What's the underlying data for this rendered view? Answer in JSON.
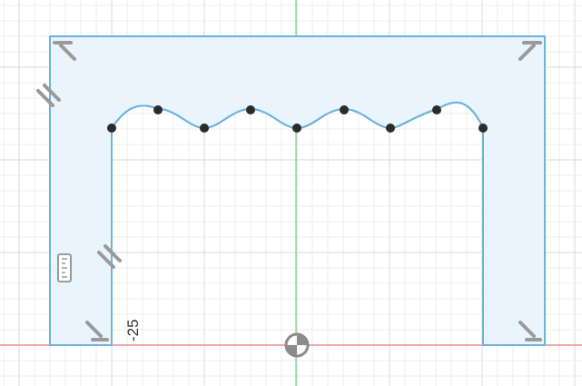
{
  "viewport": {
    "background": "#ffffff",
    "grid_minor_color": "#ececec",
    "grid_major_color": "#d9d9d9",
    "x_axis_color": "#f08a8a",
    "y_axis_color": "#8fdc8f"
  },
  "sketch": {
    "profile_fill": "#eaf4fc",
    "profile_stroke": "#6bb3df",
    "point_color": "#2b2b2b",
    "constraint_color": "#9a9a9a",
    "dimension_label": "-25",
    "spline_point_count": 9,
    "constraints": {
      "perpendicular_icons": [
        "perpendicular-top-left",
        "perpendicular-top-right",
        "perpendicular-bottom-left",
        "perpendicular-bottom-right"
      ],
      "parallel_icons": [
        "parallel-left-outer",
        "parallel-left-inner"
      ],
      "dimension_icon": "dimension-ruler-icon"
    }
  }
}
